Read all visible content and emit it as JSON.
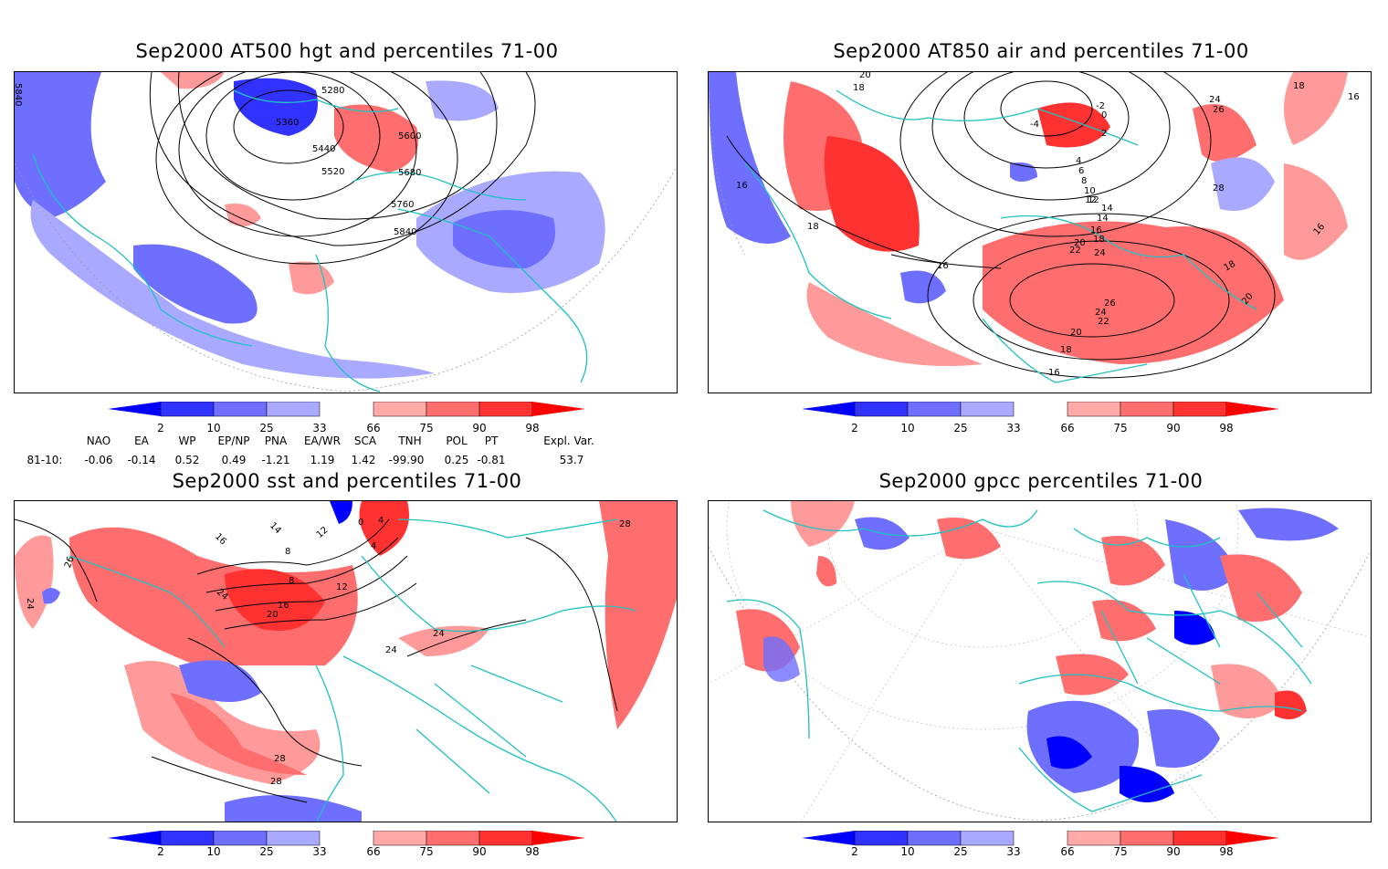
{
  "panels": [
    {
      "id": "hgt",
      "title": "Sep2000 AT500 hgt and percentiles 71-00",
      "contour_labels": [
        "5280",
        "5360",
        "5440",
        "5520",
        "5600",
        "5680",
        "5760",
        "5840",
        "5840"
      ]
    },
    {
      "id": "air",
      "title": "Sep2000 AT850 air and percentiles 71-00",
      "contour_labels": [
        "20",
        "18",
        "16",
        "16",
        "18",
        "16",
        "14",
        "12",
        "4",
        "6",
        "8",
        "10",
        "12",
        "14",
        "16",
        "18",
        "20",
        "22",
        "24",
        "26",
        "24",
        "22",
        "20",
        "18",
        "16",
        "18",
        "20",
        "24",
        "26",
        "28",
        "18",
        "16",
        "-2",
        "0",
        "2",
        "-4"
      ]
    },
    {
      "id": "sst",
      "title": "Sep2000 sst and percentiles 71-00",
      "contour_labels": [
        "24",
        "26",
        "16",
        "14",
        "12",
        "8",
        "4",
        "8",
        "12",
        "16",
        "20",
        "24",
        "24",
        "24",
        "28",
        "28",
        "28",
        "0",
        "4"
      ]
    },
    {
      "id": "gpcc",
      "title": "Sep2000 gpcc percentiles 71-00",
      "contour_labels": []
    }
  ],
  "colorbar": {
    "labels": [
      "2",
      "10",
      "25",
      "33",
      "66",
      "75",
      "90",
      "98"
    ],
    "colors": {
      "blue_dark": "#0000ff",
      "blue_mid": "#3232ff",
      "blue_light": "#6e6eff",
      "blue_pale": "#a9a9ff",
      "red_pale": "#ffa9a9",
      "red_light": "#ff6e6e",
      "red_mid": "#ff3232",
      "red_dark": "#ff0000"
    }
  },
  "indices": {
    "headers": [
      "NAO",
      "EA",
      "WP",
      "EP/NP",
      "PNA",
      "EA/WR",
      "SCA",
      "TNH",
      "POL",
      "PT",
      "Expl. Var."
    ],
    "row_label": "81-10:",
    "values": [
      "-0.06",
      "-0.14",
      "0.52",
      "0.49",
      "-1.21",
      "1.19",
      "1.42",
      "-99.90",
      "0.25",
      "-0.81",
      "53.7"
    ]
  },
  "colors": {
    "coast": "#20c0c0",
    "contour": "#000000",
    "grid": "#999999"
  }
}
